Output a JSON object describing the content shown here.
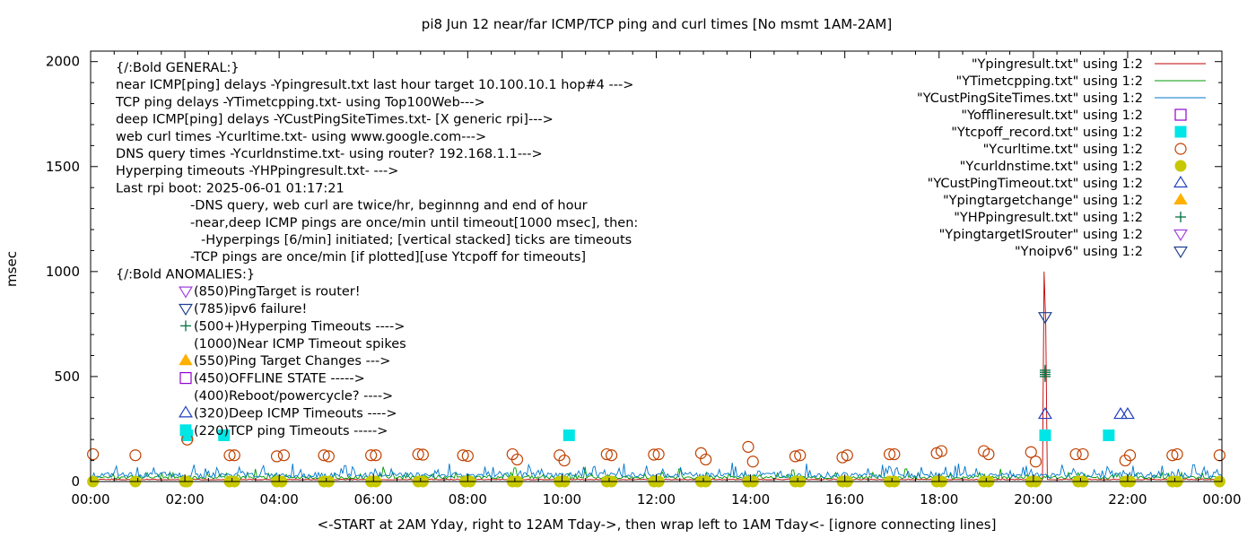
{
  "chart_data": {
    "type": "line",
    "title": "pi8 Jun 12  near/far ICMP/TCP ping and curl times [No msmt 1AM-2AM]",
    "xlabel": "<-START at 2AM Yday, right to 12AM Tday->, then wrap left to 1AM Tday<- [ignore connecting lines]",
    "ylabel": "msec",
    "xlim": [
      0,
      24
    ],
    "ylim": [
      0,
      2050
    ],
    "y_ticks": [
      "0",
      "500",
      "1000",
      "1500",
      "2000"
    ],
    "y_tick_values": [
      0,
      500,
      1000,
      1500,
      2000
    ],
    "x_ticks": [
      "00:00",
      "02:00",
      "04:00",
      "06:00",
      "08:00",
      "10:00",
      "12:00",
      "14:00",
      "16:00",
      "18:00",
      "20:00",
      "22:00",
      "00:00"
    ],
    "x_tick_values": [
      0,
      2,
      4,
      6,
      8,
      10,
      12,
      14,
      16,
      18,
      20,
      22,
      24
    ],
    "grid": false,
    "legend_position": "top-right",
    "series": [
      {
        "name": "\"Ypingresult.txt\" using 1:2",
        "style": "line",
        "color": "#c00000",
        "baseline": 8,
        "noise": 4,
        "spikes": [
          [
            20.23,
            1000
          ],
          [
            20.25,
            760
          ]
        ]
      },
      {
        "name": "\"YTimetcpping.txt\" using 1:2",
        "style": "line",
        "color": "#009900",
        "baseline": 12,
        "noise": 25,
        "spikes": [
          [
            3.5,
            60
          ],
          [
            6.2,
            70
          ],
          [
            9.0,
            65
          ],
          [
            10.5,
            70
          ],
          [
            12.5,
            60
          ],
          [
            14.9,
            55
          ],
          [
            17.3,
            60
          ],
          [
            19.3,
            60
          ]
        ]
      },
      {
        "name": "\"YCustPingSiteTimes.txt\" using 1:2",
        "style": "line",
        "color": "#0077cc",
        "baseline": 18,
        "noise": 45,
        "spikes": [
          [
            2.2,
            80
          ],
          [
            4.3,
            85
          ],
          [
            5.4,
            75
          ],
          [
            7.6,
            85
          ],
          [
            9.3,
            80
          ],
          [
            11.3,
            85
          ],
          [
            13.6,
            90
          ],
          [
            15.2,
            85
          ],
          [
            16.8,
            80
          ],
          [
            18.4,
            85
          ],
          [
            20.6,
            80
          ],
          [
            22.1,
            75
          ],
          [
            23.4,
            80
          ]
        ]
      },
      {
        "name": "\"Yofflineresult.txt\" using 1:2",
        "style": "marker",
        "marker": "open-square",
        "color": "#9400d3",
        "points": []
      },
      {
        "name": "\"Ytcpoff_record.txt\" using 1:2",
        "style": "marker",
        "marker": "filled-square",
        "color": "#00e5e5",
        "points": [
          [
            2.05,
            220
          ],
          [
            2.83,
            220
          ],
          [
            10.15,
            220
          ],
          [
            20.25,
            220
          ],
          [
            21.6,
            220
          ]
        ]
      },
      {
        "name": "\"Ycurltime.txt\" using 1:2",
        "style": "marker",
        "marker": "open-circle",
        "color": "#c04000",
        "points": [
          [
            0.05,
            130
          ],
          [
            0.95,
            125
          ],
          [
            2.05,
            200
          ],
          [
            2.95,
            125
          ],
          [
            3.05,
            125
          ],
          [
            3.95,
            120
          ],
          [
            4.1,
            125
          ],
          [
            4.95,
            125
          ],
          [
            5.05,
            120
          ],
          [
            5.95,
            125
          ],
          [
            6.05,
            125
          ],
          [
            6.95,
            130
          ],
          [
            7.05,
            128
          ],
          [
            7.9,
            125
          ],
          [
            8.0,
            122
          ],
          [
            8.95,
            130
          ],
          [
            9.05,
            105
          ],
          [
            9.95,
            125
          ],
          [
            10.05,
            100
          ],
          [
            10.95,
            130
          ],
          [
            11.05,
            125
          ],
          [
            11.95,
            128
          ],
          [
            12.05,
            130
          ],
          [
            12.95,
            135
          ],
          [
            13.05,
            105
          ],
          [
            13.95,
            165
          ],
          [
            14.05,
            95
          ],
          [
            14.95,
            120
          ],
          [
            15.05,
            125
          ],
          [
            15.95,
            115
          ],
          [
            16.05,
            125
          ],
          [
            16.95,
            130
          ],
          [
            17.05,
            130
          ],
          [
            17.95,
            135
          ],
          [
            18.05,
            145
          ],
          [
            18.95,
            145
          ],
          [
            19.05,
            130
          ],
          [
            19.95,
            140
          ],
          [
            20.05,
            95
          ],
          [
            20.9,
            130
          ],
          [
            21.05,
            130
          ],
          [
            21.95,
            100
          ],
          [
            22.05,
            125
          ],
          [
            22.95,
            125
          ],
          [
            23.05,
            130
          ],
          [
            23.95,
            125
          ]
        ]
      },
      {
        "name": "\"Ycurldnstime.txt\" using 1:2",
        "style": "marker",
        "marker": "filled-circle",
        "color": "#c8c800",
        "points": [
          [
            0.05,
            0
          ],
          [
            0.95,
            0
          ],
          [
            2.0,
            0
          ],
          [
            2.05,
            0
          ],
          [
            2.95,
            0
          ],
          [
            3.05,
            0
          ],
          [
            3.95,
            0
          ],
          [
            4.05,
            0
          ],
          [
            4.95,
            0
          ],
          [
            5.05,
            0
          ],
          [
            5.95,
            0
          ],
          [
            6.05,
            0
          ],
          [
            6.95,
            0
          ],
          [
            7.05,
            0
          ],
          [
            7.95,
            0
          ],
          [
            8.05,
            0
          ],
          [
            8.95,
            0
          ],
          [
            9.05,
            0
          ],
          [
            9.95,
            0
          ],
          [
            10.05,
            0
          ],
          [
            10.95,
            0
          ],
          [
            11.05,
            0
          ],
          [
            11.95,
            0
          ],
          [
            12.05,
            0
          ],
          [
            12.95,
            0
          ],
          [
            13.05,
            0
          ],
          [
            13.95,
            0
          ],
          [
            14.05,
            0
          ],
          [
            14.95,
            0
          ],
          [
            15.05,
            0
          ],
          [
            15.95,
            0
          ],
          [
            16.05,
            0
          ],
          [
            16.95,
            0
          ],
          [
            17.05,
            0
          ],
          [
            17.95,
            0
          ],
          [
            18.05,
            0
          ],
          [
            18.95,
            0
          ],
          [
            19.05,
            0
          ],
          [
            19.95,
            0
          ],
          [
            20.05,
            0
          ],
          [
            20.95,
            0
          ],
          [
            21.05,
            0
          ],
          [
            21.95,
            0
          ],
          [
            22.05,
            0
          ],
          [
            22.95,
            0
          ],
          [
            23.05,
            0
          ],
          [
            23.95,
            0
          ]
        ]
      },
      {
        "name": "\"YCustPingTimeout.txt\" using 1:2",
        "style": "marker",
        "marker": "open-triangle-up",
        "color": "#1f3fbf",
        "points": [
          [
            20.25,
            320
          ],
          [
            21.85,
            320
          ],
          [
            22.0,
            320
          ]
        ]
      },
      {
        "name": "\"Ypingtargetchange\" using 1:2",
        "style": "marker",
        "marker": "filled-triangle-up",
        "color": "#ffb000",
        "points": []
      },
      {
        "name": "\"YHPpingresult.txt\" using 1:2",
        "style": "marker",
        "marker": "plus",
        "color": "#007040",
        "points": [
          [
            20.25,
            500
          ],
          [
            20.25,
            510
          ],
          [
            20.25,
            520
          ],
          [
            20.25,
            530
          ]
        ]
      },
      {
        "name": "\"YpingtargetISrouter\" using 1:2",
        "style": "marker",
        "marker": "open-triangle-down",
        "color": "#a040e0",
        "points": []
      },
      {
        "name": "\"Ynoipv6\" using 1:2",
        "style": "marker",
        "marker": "open-triangle-down",
        "color": "#1f3f8f",
        "points": [
          [
            20.25,
            785
          ]
        ]
      }
    ]
  },
  "notes": {
    "lines": [
      {
        "text": "{/:Bold GENERAL:}",
        "indent": 0
      },
      {
        "text": "near ICMP[ping] delays -Ypingresult.txt last hour target 10.100.10.1 hop#4 --->",
        "indent": 0
      },
      {
        "text": "TCP ping delays -YTimetcpping.txt- using Top100Web--->",
        "indent": 0
      },
      {
        "text": "deep ICMP[ping] delays -YCustPingSiteTimes.txt- [X generic rpi]--->",
        "indent": 0
      },
      {
        "text": "web curl times -Ycurltime.txt- using www.google.com--->",
        "indent": 0
      },
      {
        "text": "DNS query times -Ycurldnstime.txt- using router? 192.168.1.1--->",
        "indent": 0
      },
      {
        "text": "Hyperping timeouts -YHPpingresult.txt- --->",
        "indent": 0
      },
      {
        "text": "Last rpi boot: 2025-06-01 01:17:21",
        "indent": 0
      },
      {
        "text": "-DNS query, web curl are twice/hr, beginnng and end of hour",
        "indent": 1
      },
      {
        "text": "-near,deep ICMP pings are once/min until timeout[1000 msec], then:",
        "indent": 1
      },
      {
        "text": "-Hyperpings [6/min] initiated; [vertical stacked] ticks are timeouts",
        "indent": 2
      },
      {
        "text": "-TCP pings are once/min [if plotted][use Ytcpoff for timeouts]",
        "indent": 1
      },
      {
        "text": "{/:Bold ANOMALIES:}",
        "indent": 0
      }
    ],
    "anomalies": [
      {
        "text": "(850)PingTarget is router!",
        "marker": "open-triangle-down",
        "color": "#a040e0"
      },
      {
        "text": "(785)ipv6 failure!",
        "marker": "open-triangle-down",
        "color": "#1f3f8f"
      },
      {
        "text": "(500+)Hyperping Timeouts ---->",
        "marker": "plus",
        "color": "#007040"
      },
      {
        "text": "(1000)Near ICMP Timeout spikes",
        "marker": "none",
        "color": "#000000"
      },
      {
        "text": "(550)Ping Target Changes --->",
        "marker": "filled-triangle-up",
        "color": "#ffb000"
      },
      {
        "text": "(450)OFFLINE STATE ----->",
        "marker": "open-square",
        "color": "#9400d3"
      },
      {
        "text": "(400)Reboot/powercycle? ---->",
        "marker": "none",
        "color": "#000000"
      },
      {
        "text": "(320)Deep ICMP Timeouts ---->",
        "marker": "open-triangle-up",
        "color": "#1f3fbf"
      },
      {
        "text": "(220)TCP ping Timeouts ----->",
        "marker": "filled-square",
        "color": "#00e5e5"
      }
    ]
  }
}
